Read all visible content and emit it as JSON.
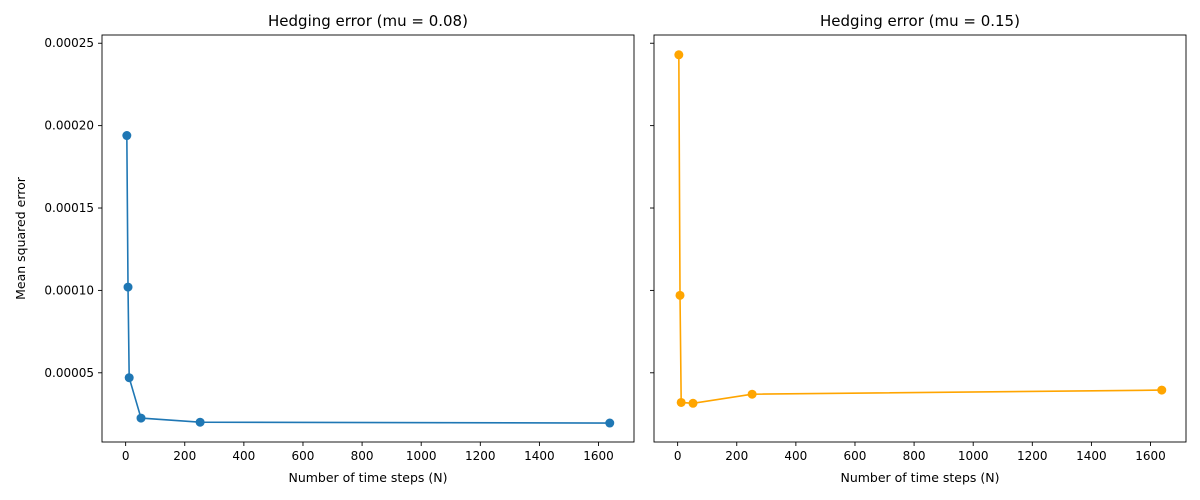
{
  "chart_data": [
    {
      "type": "line",
      "title": "Hedging error (mu = 0.08)",
      "xlabel": "Number of time steps (N)",
      "ylabel": "Mean squared error",
      "xlim": [
        -80,
        1720
      ],
      "ylim": [
        8e-06,
        0.000255
      ],
      "xticks": [
        0,
        200,
        400,
        600,
        800,
        1000,
        1200,
        1400,
        1600
      ],
      "yticks": [
        5e-05,
        0.0001,
        0.00015,
        0.0002,
        0.00025
      ],
      "ytick_labels": [
        "0.00005",
        "0.00010",
        "0.00015",
        "0.00020",
        "0.00025"
      ],
      "series": [
        {
          "color": "#1f77b4",
          "marker": "circle",
          "x": [
            4,
            8,
            12,
            52,
            252,
            1638
          ],
          "y": [
            0.000194,
            0.000102,
            4.7e-05,
            2.25e-05,
            2e-05,
            1.95e-05
          ]
        }
      ]
    },
    {
      "type": "line",
      "title": "Hedging error (mu = 0.15)",
      "xlabel": "Number of time steps (N)",
      "ylabel": "",
      "xlim": [
        -80,
        1720
      ],
      "ylim": [
        8e-06,
        0.000255
      ],
      "xticks": [
        0,
        200,
        400,
        600,
        800,
        1000,
        1200,
        1400,
        1600
      ],
      "yticks": [
        5e-05,
        0.0001,
        0.00015,
        0.0002,
        0.00025
      ],
      "ytick_labels": [],
      "series": [
        {
          "color": "#ffa500",
          "marker": "circle",
          "x": [
            4,
            8,
            12,
            52,
            252,
            1638
          ],
          "y": [
            0.000243,
            9.7e-05,
            3.2e-05,
            3.15e-05,
            3.7e-05,
            3.95e-05
          ]
        }
      ]
    }
  ]
}
